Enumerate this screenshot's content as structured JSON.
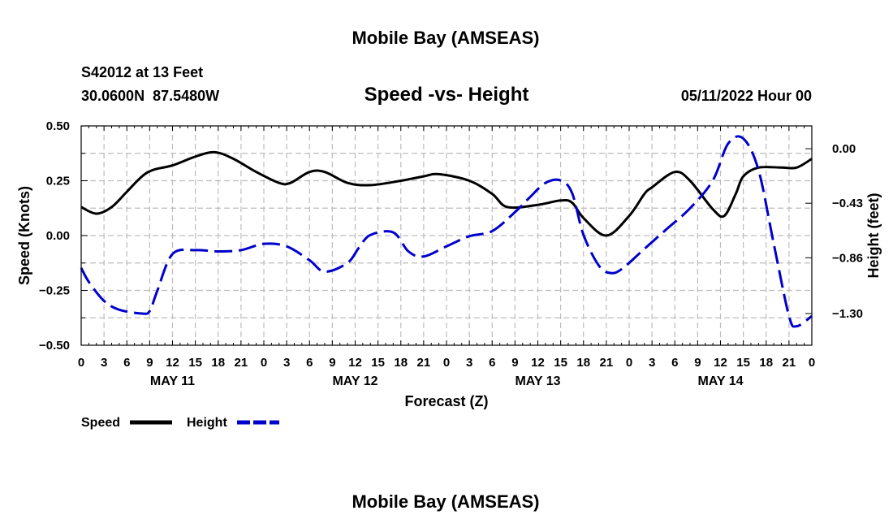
{
  "page_title_top": "Mobile Bay (AMSEAS)",
  "page_title_bottom": "Mobile Bay (AMSEAS)",
  "station_line": "S42012 at 13 Feet",
  "coords_line": "30.0600N  87.5480W",
  "date_line": "05/11/2022 Hour 00",
  "colors": {
    "speed": "#000000",
    "height": "#0000cc",
    "grid": "#bdbdbd"
  },
  "chart_data": {
    "type": "line",
    "title": "Speed -vs- Height",
    "xlabel": "Forecast (Z)",
    "ylabel": "Speed (Knots)",
    "y2label": "Height (feet)",
    "xlim": [
      0,
      96
    ],
    "ylim": [
      -0.5,
      0.5
    ],
    "y2lim": [
      -1.55,
      0.18
    ],
    "yticks": [
      -0.5,
      -0.25,
      0.0,
      0.25,
      0.5
    ],
    "ytick_labels": [
      "−0.50",
      "−0.25",
      "0.00",
      "0.25",
      "0.50"
    ],
    "y2ticks": [
      -1.3,
      -0.86,
      -0.43,
      0.0
    ],
    "y2tick_labels": [
      "−1.30",
      "−0.86",
      "−0.43",
      "0.00"
    ],
    "xticks": [
      0,
      3,
      6,
      9,
      12,
      15,
      18,
      21,
      24,
      27,
      30,
      33,
      36,
      39,
      42,
      45,
      48,
      51,
      54,
      57,
      60,
      63,
      66,
      69,
      72,
      75,
      78,
      81,
      84,
      87,
      90,
      93,
      96
    ],
    "xtick_labels": [
      "0",
      "3",
      "6",
      "9",
      "12",
      "15",
      "18",
      "21",
      "0",
      "3",
      "6",
      "9",
      "12",
      "15",
      "18",
      "21",
      "0",
      "3",
      "6",
      "9",
      "12",
      "15",
      "18",
      "21",
      "0",
      "3",
      "6",
      "9",
      "12",
      "15",
      "18",
      "21",
      "0"
    ],
    "day_labels": [
      {
        "x": 12,
        "label": "MAY 11"
      },
      {
        "x": 36,
        "label": "MAY 12"
      },
      {
        "x": 60,
        "label": "MAY 13"
      },
      {
        "x": 84,
        "label": "MAY 14"
      }
    ],
    "legend": [
      {
        "name": "Speed",
        "style": "solid",
        "color": "#000000"
      },
      {
        "name": "Height",
        "style": "dashed",
        "color": "#0000cc"
      }
    ],
    "series": [
      {
        "name": "Speed",
        "axis": "left",
        "style": "solid",
        "x": [
          0,
          2,
          4,
          6,
          8,
          9.5,
          12,
          15,
          17.5,
          20,
          23,
          26,
          27.5,
          30,
          32,
          35,
          38,
          42,
          45,
          47,
          51,
          54,
          56,
          60,
          63,
          64.5,
          66,
          69,
          72,
          74,
          75,
          78,
          80,
          83,
          84.5,
          86,
          87,
          89,
          92,
          94,
          96
        ],
        "values": [
          0.13,
          0.1,
          0.13,
          0.2,
          0.27,
          0.3,
          0.32,
          0.36,
          0.38,
          0.35,
          0.29,
          0.24,
          0.24,
          0.29,
          0.29,
          0.24,
          0.23,
          0.25,
          0.27,
          0.28,
          0.25,
          0.19,
          0.13,
          0.14,
          0.16,
          0.15,
          0.08,
          0.0,
          0.09,
          0.19,
          0.22,
          0.29,
          0.25,
          0.12,
          0.09,
          0.19,
          0.27,
          0.31,
          0.31,
          0.31,
          0.35
        ]
      },
      {
        "name": "Height",
        "axis": "right",
        "values_unit": "feet",
        "style": "dashed",
        "x": [
          0,
          1,
          3,
          5,
          8,
          9,
          10,
          12,
          15,
          18,
          21,
          24,
          27,
          30,
          32,
          35,
          36.5,
          38,
          41,
          43,
          45,
          48,
          51,
          54,
          57,
          59,
          61,
          63,
          64.5,
          66,
          68,
          69.5,
          71,
          74,
          77,
          80,
          83,
          85,
          87,
          89,
          91,
          93,
          94,
          96
        ],
        "values": [
          -0.94,
          -1.05,
          -1.2,
          -1.27,
          -1.3,
          -1.28,
          -1.12,
          -0.83,
          -0.8,
          -0.81,
          -0.8,
          -0.75,
          -0.77,
          -0.88,
          -0.97,
          -0.9,
          -0.78,
          -0.68,
          -0.66,
          -0.81,
          -0.85,
          -0.77,
          -0.69,
          -0.65,
          -0.5,
          -0.38,
          -0.27,
          -0.25,
          -0.35,
          -0.68,
          -0.92,
          -0.98,
          -0.95,
          -0.79,
          -0.63,
          -0.47,
          -0.25,
          0.04,
          0.08,
          -0.17,
          -0.75,
          -1.32,
          -1.4,
          -1.32
        ]
      }
    ]
  }
}
